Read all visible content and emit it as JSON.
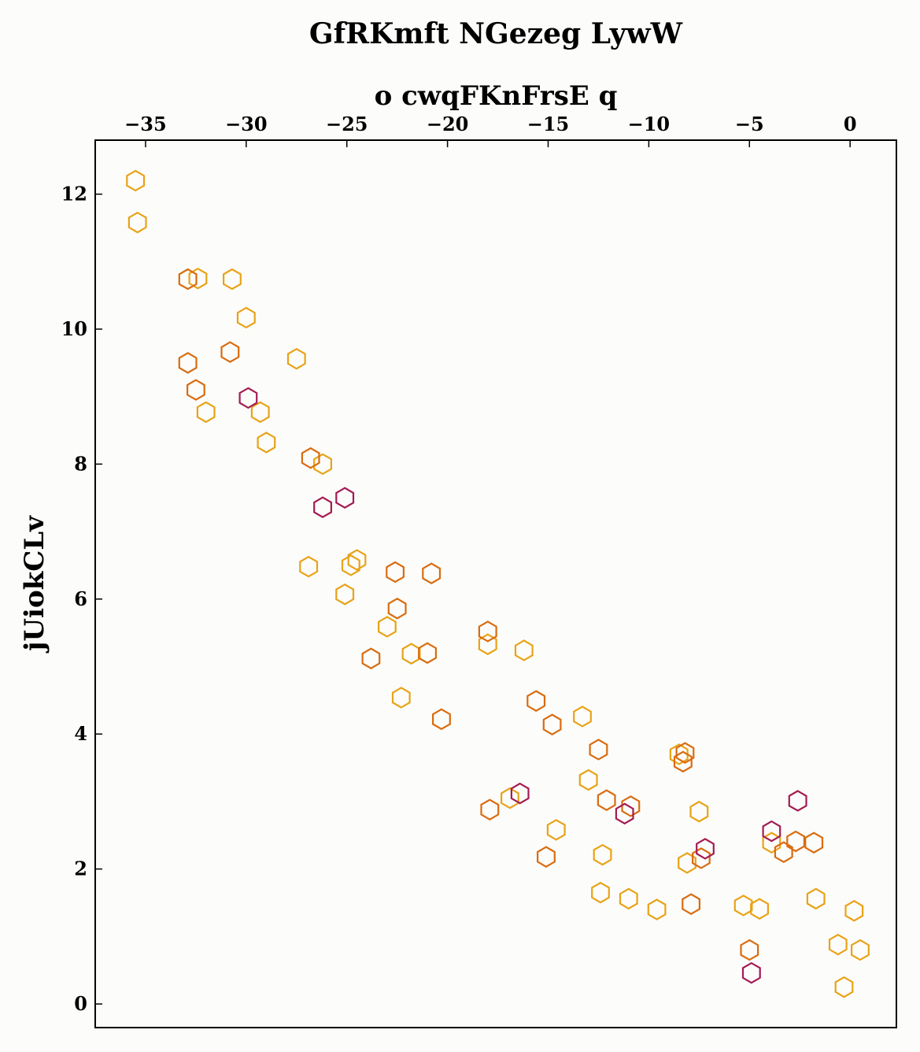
{
  "chart_data": {
    "type": "scatter",
    "title": "GfRKmft NGezeg LywW",
    "xlabel": "o cwqFKnFrsE q",
    "ylabel": "jUiokCLv",
    "xlim": [
      -37.5,
      2.3
    ],
    "ylim": [
      -0.35,
      12.8
    ],
    "x_axis_position": "top",
    "grid": false,
    "marker": "hexagon-outline",
    "xticks": [
      -35,
      -30,
      -25,
      -20,
      -15,
      -10,
      -5,
      0
    ],
    "yticks": [
      0,
      2,
      4,
      6,
      8,
      10,
      12
    ],
    "colors": {
      "gold": "#e8a317",
      "orange": "#d96c10",
      "crimson": "#a31c52"
    },
    "series": [
      {
        "color": "#e8a317",
        "points": [
          [
            -35.5,
            12.2
          ],
          [
            -35.4,
            11.58
          ],
          [
            -32.4,
            10.75
          ],
          [
            -30.7,
            10.74
          ],
          [
            -30.0,
            10.17
          ],
          [
            -27.5,
            9.56
          ],
          [
            -29.3,
            8.77
          ],
          [
            -32.0,
            8.77
          ],
          [
            -29.0,
            8.32
          ],
          [
            -26.2,
            8.0
          ],
          [
            -26.9,
            6.48
          ],
          [
            -24.8,
            6.5
          ],
          [
            -24.5,
            6.58
          ],
          [
            -25.1,
            6.07
          ],
          [
            -23.0,
            5.59
          ],
          [
            -21.8,
            5.19
          ],
          [
            -22.3,
            4.54
          ],
          [
            -18.0,
            5.33
          ],
          [
            -16.2,
            5.24
          ],
          [
            -13.3,
            4.26
          ],
          [
            -16.9,
            3.05
          ],
          [
            -13.0,
            3.32
          ],
          [
            -14.6,
            2.58
          ],
          [
            -12.3,
            2.21
          ],
          [
            -12.4,
            1.65
          ],
          [
            -11.0,
            1.56
          ],
          [
            -9.6,
            1.4
          ],
          [
            -8.5,
            3.7
          ],
          [
            -7.5,
            2.85
          ],
          [
            -8.1,
            2.09
          ],
          [
            -5.3,
            1.46
          ],
          [
            -4.5,
            1.41
          ],
          [
            -3.9,
            2.39
          ],
          [
            -1.7,
            1.56
          ],
          [
            -0.6,
            0.88
          ],
          [
            -0.3,
            0.25
          ],
          [
            0.2,
            1.38
          ],
          [
            0.5,
            0.8
          ]
        ]
      },
      {
        "color": "#d96c10",
        "points": [
          [
            -32.9,
            10.74
          ],
          [
            -32.9,
            9.5
          ],
          [
            -32.5,
            9.1
          ],
          [
            -30.8,
            9.66
          ],
          [
            -26.8,
            8.09
          ],
          [
            -22.6,
            6.4
          ],
          [
            -20.8,
            6.38
          ],
          [
            -22.5,
            5.86
          ],
          [
            -23.8,
            5.12
          ],
          [
            -21.0,
            5.2
          ],
          [
            -20.3,
            4.22
          ],
          [
            -18.0,
            5.52
          ],
          [
            -15.6,
            4.49
          ],
          [
            -14.8,
            4.14
          ],
          [
            -12.5,
            3.77
          ],
          [
            -17.9,
            2.88
          ],
          [
            -12.1,
            3.02
          ],
          [
            -10.9,
            2.93
          ],
          [
            -15.1,
            2.18
          ],
          [
            -8.2,
            3.72
          ],
          [
            -8.3,
            3.59
          ],
          [
            -7.4,
            2.16
          ],
          [
            -7.9,
            1.48
          ],
          [
            -5.0,
            0.8
          ],
          [
            -3.3,
            2.25
          ],
          [
            -2.7,
            2.41
          ],
          [
            -1.8,
            2.39
          ]
        ]
      },
      {
        "color": "#a31c52",
        "points": [
          [
            -29.9,
            8.98
          ],
          [
            -26.2,
            7.36
          ],
          [
            -25.1,
            7.5
          ],
          [
            -16.4,
            3.12
          ],
          [
            -11.2,
            2.82
          ],
          [
            -7.2,
            2.3
          ],
          [
            -4.9,
            0.46
          ],
          [
            -3.9,
            2.56
          ],
          [
            -2.6,
            3.01
          ]
        ]
      }
    ]
  }
}
